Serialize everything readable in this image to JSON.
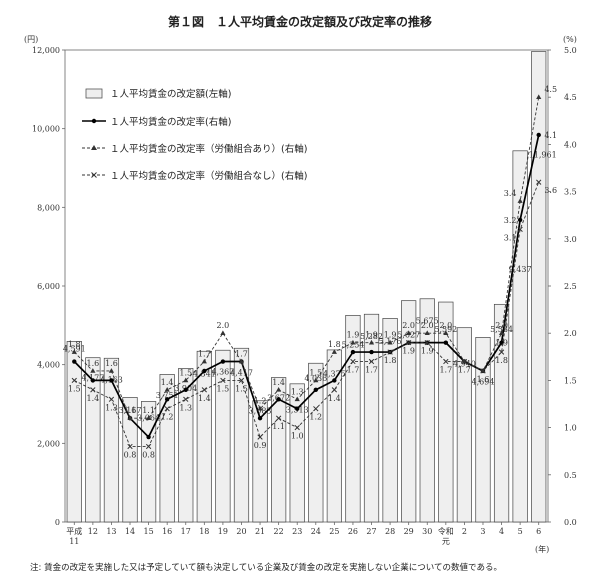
{
  "chart_data": {
    "type": "bar",
    "title": "第１図　１人平均賃金の改定額及び改定率の推移",
    "y_left_unit": "(円)",
    "y_right_unit": "(%)",
    "x_unit": "(年)",
    "ylim_left": [
      0,
      12000
    ],
    "ylim_right": [
      0.0,
      5.0
    ],
    "y_left_ticks": [
      "0",
      "2,000",
      "4,000",
      "6,000",
      "8,000",
      "10,000",
      "12,000"
    ],
    "y_right_ticks": [
      "0.0",
      "0.5",
      "1.0",
      "1.5",
      "2.0",
      "2.5",
      "3.0",
      "3.5",
      "4.0",
      "4.5",
      "5.0"
    ],
    "categories": [
      [
        "平成",
        "11"
      ],
      [
        "12"
      ],
      [
        "13"
      ],
      [
        "14"
      ],
      [
        "15"
      ],
      [
        "16"
      ],
      [
        "17"
      ],
      [
        "18"
      ],
      [
        "19"
      ],
      [
        "20"
      ],
      [
        "21"
      ],
      [
        "22"
      ],
      [
        "23"
      ],
      [
        "24"
      ],
      [
        "25"
      ],
      [
        "26"
      ],
      [
        "27"
      ],
      [
        "28"
      ],
      [
        "29"
      ],
      [
        "30"
      ],
      [
        "令和",
        "元"
      ],
      [
        "2"
      ],
      [
        "3"
      ],
      [
        "4"
      ],
      [
        "5"
      ],
      [
        "6"
      ]
    ],
    "series": [
      {
        "name": "１人平均賃金の改定額(左軸)",
        "axis": "left",
        "style": "bar",
        "values": [
          4591,
          4177,
          4163,
          3167,
          3064,
          3751,
          3904,
          4341,
          4367,
          4417,
          3083,
          3672,
          3513,
          4036,
          4375,
          5254,
          5282,
          5176,
          5627,
          5675,
          5592,
          4940,
          4694,
          5534,
          9437,
          11961
        ],
        "labels": [
          "4,591",
          "4,177",
          "4,163",
          "3,167",
          "3,064",
          "3,751",
          "3,904",
          "4,341",
          "4,367",
          "4,417",
          "3,083",
          "3,672",
          "3,513",
          "4,036",
          "4,375",
          "5,254",
          "5,282",
          "5,176",
          "5,627",
          "5,675",
          "5,592",
          "4,940",
          "4,694",
          "5,534",
          "9,437",
          "11,961"
        ]
      },
      {
        "name": "１人平均賃金の改定率(右軸)",
        "axis": "right",
        "style": "solid",
        "values": [
          1.7,
          1.5,
          1.5,
          1.1,
          0.9,
          1.3,
          1.4,
          1.6,
          1.7,
          1.7,
          1.1,
          1.3,
          1.2,
          1.4,
          1.5,
          1.8,
          1.8,
          1.8,
          1.9,
          1.9,
          1.9,
          1.7,
          1.6,
          1.9,
          3.2,
          4.1
        ],
        "labels": [
          "1.7",
          "1.5",
          "1.5",
          "1.1",
          "0.9",
          "1.3",
          "1.4",
          "1.6",
          "1.7",
          "1.7",
          "1.1",
          "1.3",
          "1.2",
          "1.4",
          "1.5",
          "1.8",
          "1.8",
          "1.8",
          "1.9",
          "1.9",
          "1.9",
          "1.7",
          "1.6",
          "1.9",
          "3.2",
          "4.1"
        ]
      },
      {
        "name": "１人平均賃金の改定率（労働組合あり）(右軸)",
        "axis": "right",
        "style": "dashed-triangle",
        "values": [
          1.8,
          1.6,
          1.6,
          1.1,
          1.1,
          1.4,
          1.5,
          1.7,
          2.0,
          1.7,
          1.2,
          1.4,
          1.3,
          1.5,
          1.8,
          1.9,
          1.9,
          1.9,
          2.0,
          2.0,
          2.0,
          1.7,
          1.6,
          2.0,
          3.4,
          4.5
        ],
        "labels": [
          "1.8",
          "1.6",
          "1.6",
          "1.1",
          "1.1",
          "1.4",
          "1.5",
          "1.7",
          "2.0",
          "1.7",
          "1.2",
          "1.4",
          "1.3",
          "1.5",
          "1.8",
          "1.9",
          "1.9",
          "1.9",
          "2.0",
          "2.0",
          "2.0",
          "",
          "",
          "2.0",
          "3.4",
          "4.5"
        ]
      },
      {
        "name": "１人平均賃金の改定率（労働組合なし）(右軸)",
        "axis": "right",
        "style": "dashed-cross",
        "values": [
          1.5,
          1.4,
          1.3,
          0.8,
          0.8,
          1.2,
          1.3,
          1.4,
          1.5,
          1.5,
          0.9,
          1.1,
          1.0,
          1.2,
          1.4,
          1.7,
          1.7,
          1.8,
          1.9,
          1.9,
          1.7,
          1.7,
          1.6,
          1.8,
          3.1,
          3.6
        ],
        "labels": [
          "1.5",
          "1.4",
          "1.3",
          "0.8",
          "0.8",
          "1.2",
          "1.3",
          "1.4",
          "1.5",
          "1.5",
          "0.9",
          "1.1",
          "1.0",
          "1.2",
          "1.4",
          "1.7",
          "1.7",
          "1.8",
          "1.9",
          "1.9",
          "1.7",
          "1.7",
          "1.6",
          "1.8",
          "3.1",
          "3.6"
        ]
      }
    ],
    "legend_position": "top-left"
  },
  "note": "注: 賃金の改定を実施した又は予定していて額も決定している企業及び賃金の改定を実施しない企業についての数値である。"
}
